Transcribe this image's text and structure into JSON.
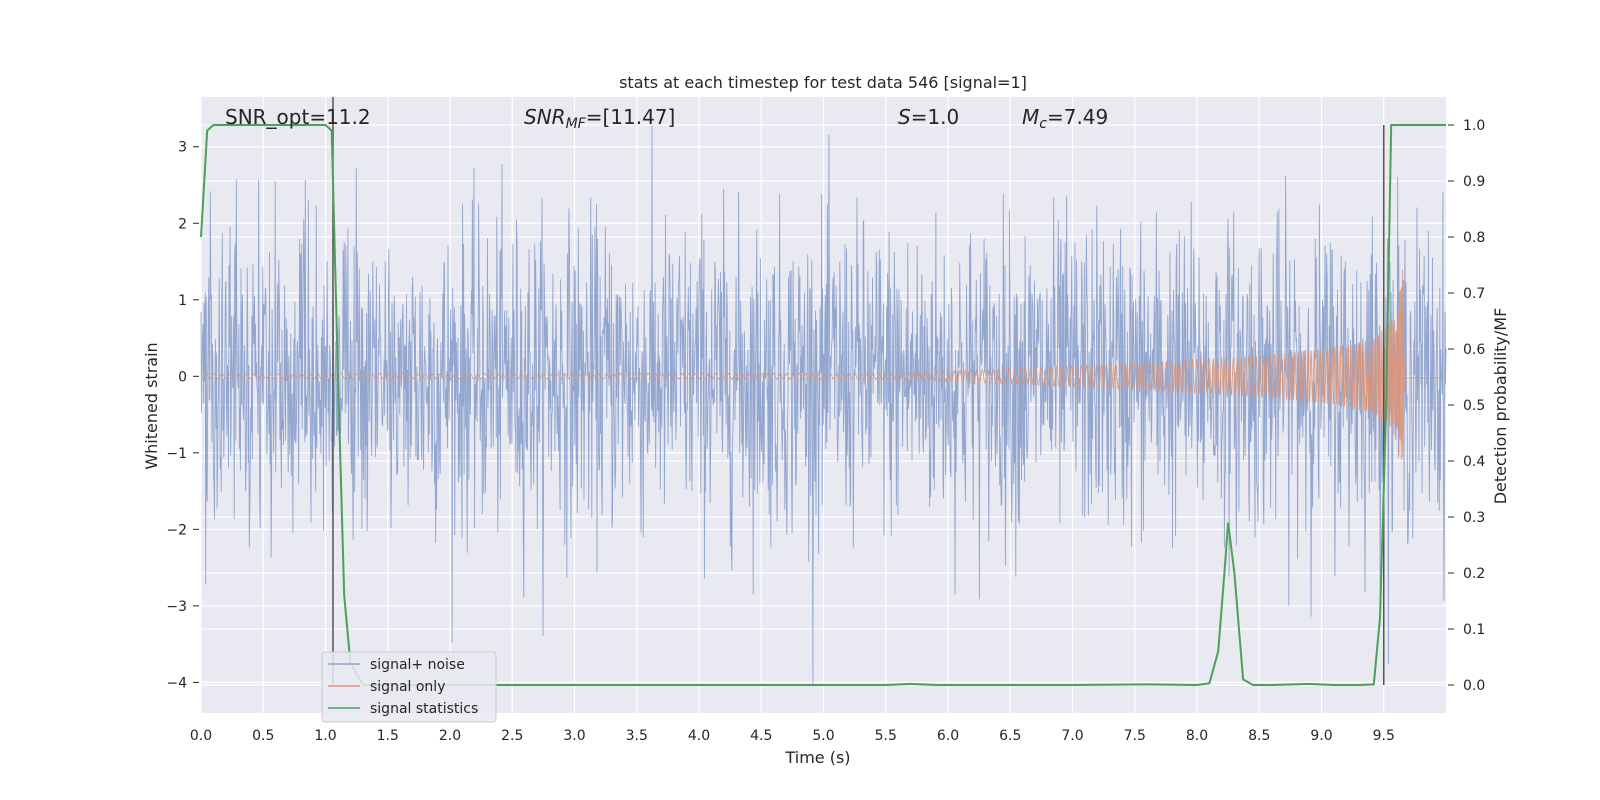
{
  "chart_data": {
    "type": "line",
    "title": "stats at each timestep for test data 546 [signal=1]",
    "xlabel": "Time (s)",
    "ylabel": "Whitened strain",
    "y2label": "Detection probability/MF",
    "xlim": [
      0,
      10
    ],
    "ylim": [
      -4.4,
      3.65
    ],
    "y2lim": [
      -0.05,
      1.05
    ],
    "xticks": [
      0.0,
      0.5,
      1.0,
      1.5,
      2.0,
      2.5,
      3.0,
      3.5,
      4.0,
      4.5,
      5.0,
      5.5,
      6.0,
      6.5,
      7.0,
      7.5,
      8.0,
      8.5,
      9.0,
      9.5
    ],
    "xtick_labels": [
      "0.0",
      "0.5",
      "1.0",
      "1.5",
      "2.0",
      "2.5",
      "3.0",
      "3.5",
      "4.0",
      "4.5",
      "5.0",
      "5.5",
      "6.0",
      "6.5",
      "7.0",
      "7.5",
      "8.0",
      "8.5",
      "9.0",
      "9.5"
    ],
    "yticks": [
      -4,
      -3,
      -2,
      -1,
      0,
      1,
      2,
      3
    ],
    "ytick_labels": [
      "−4",
      "−3",
      "−2",
      "−1",
      "0",
      "1",
      "2",
      "3"
    ],
    "y2ticks": [
      0.0,
      0.1,
      0.2,
      0.3,
      0.4,
      0.5,
      0.6,
      0.7,
      0.8,
      0.9,
      1.0
    ],
    "y2tick_labels": [
      "0.0",
      "0.1",
      "0.2",
      "0.3",
      "0.4",
      "0.5",
      "0.6",
      "0.7",
      "0.8",
      "0.9",
      "1.0"
    ],
    "grid": true,
    "legend_position": "bottom-left",
    "annotations": {
      "snr_opt": "SNR_opt=11.2",
      "snr_mf": "SNR",
      "snr_mf_sub": "MF",
      "snr_mf_val": "=[11.47]",
      "s_label": "S",
      "s_val": "=1.0",
      "mc_label": "M",
      "mc_sub": "c",
      "mc_val": "=7.49"
    },
    "series": [
      {
        "name": "signal+ noise",
        "color": "#8da2cc",
        "axis": "left",
        "style": "noise band",
        "sigma": 1.0,
        "x_range": [
          0,
          10
        ]
      },
      {
        "name": "signal only",
        "color": "#d9957a",
        "axis": "left",
        "style": "chirp",
        "x": [
          0,
          5.5,
          6.5,
          7.5,
          8.5,
          9.0,
          9.4,
          9.6,
          9.65,
          9.67,
          10.0
        ],
        "envelope": [
          0.03,
          0.04,
          0.1,
          0.17,
          0.27,
          0.35,
          0.48,
          0.8,
          1.4,
          0.02,
          0.02
        ]
      },
      {
        "name": "signal statistics",
        "color": "#4e9f5a",
        "axis": "right",
        "x": [
          0.0,
          0.05,
          0.1,
          0.2,
          0.5,
          0.8,
          1.0,
          1.05,
          1.1,
          1.15,
          1.2,
          1.3,
          2.0,
          3.0,
          4.0,
          5.0,
          5.5,
          5.7,
          5.9,
          6.5,
          7.0,
          7.6,
          8.0,
          8.1,
          8.17,
          8.22,
          8.25,
          8.3,
          8.37,
          8.45,
          8.6,
          8.9,
          9.1,
          9.3,
          9.42,
          9.47,
          9.52,
          9.56,
          9.7,
          10.0
        ],
        "values": [
          0.8,
          0.99,
          1.0,
          1.0,
          1.0,
          1.0,
          1.0,
          0.99,
          0.55,
          0.16,
          0.04,
          0.0,
          0.0,
          0.0,
          0.0,
          0.0,
          0.0,
          0.002,
          0.0,
          0.0,
          0.0,
          0.001,
          0.0,
          0.003,
          0.06,
          0.2,
          0.29,
          0.2,
          0.01,
          0.0,
          0.0,
          0.002,
          0.0,
          0.0,
          0.001,
          0.12,
          0.5,
          1.0,
          1.0,
          1.0
        ]
      }
    ],
    "markers": [
      {
        "x": 1.06,
        "y_top": 1.05,
        "y_bottom": 0.0
      },
      {
        "x": 9.5,
        "y_top": 1.0,
        "y_bottom": 0.0
      }
    ]
  }
}
